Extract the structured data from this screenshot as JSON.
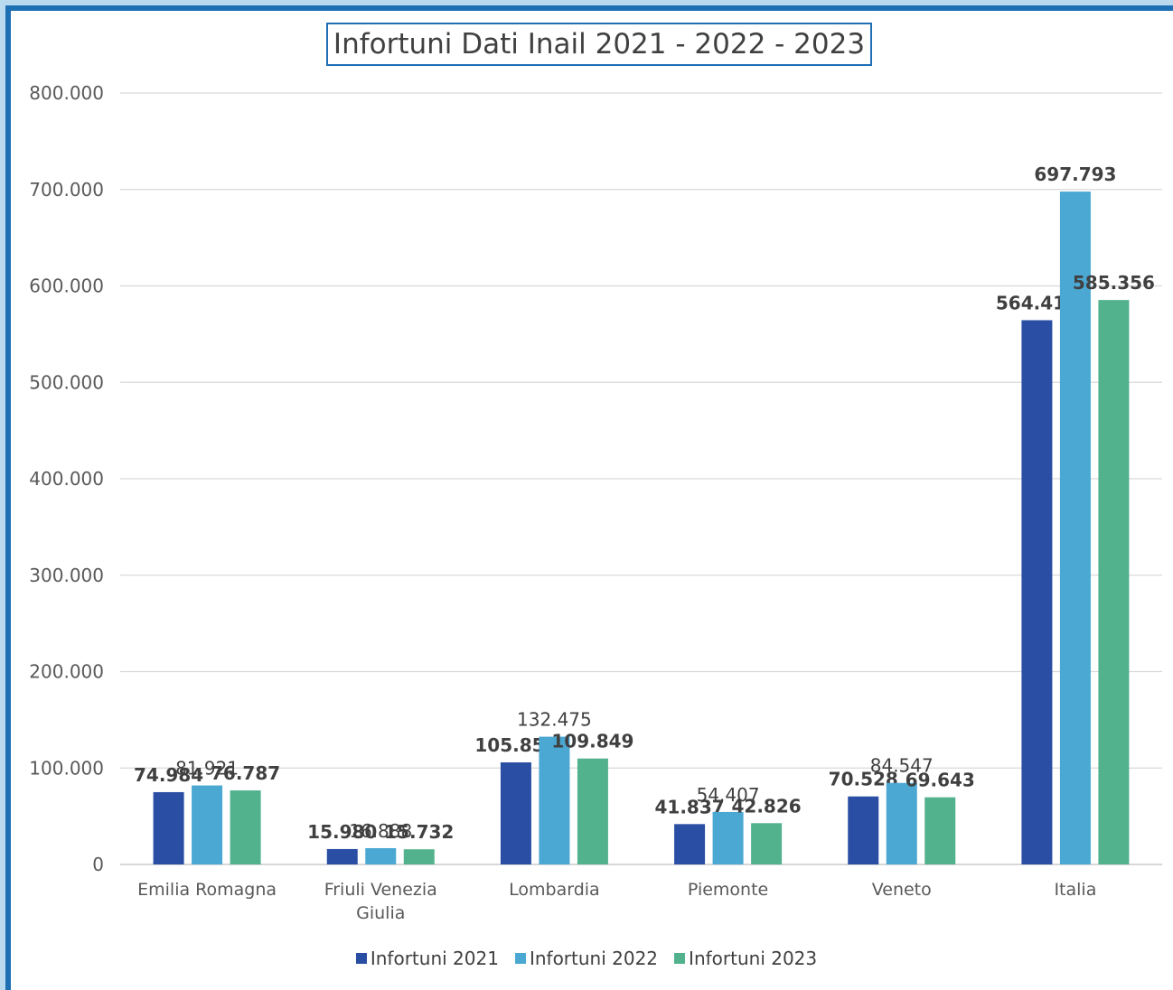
{
  "chart_data": {
    "type": "bar",
    "title": "Infortuni Dati Inail 2021 - 2022 - 2023",
    "categories": [
      "Emilia Romagna",
      "Friuli Venezia Giulia",
      "Lombardia",
      "Piemonte",
      "Veneto",
      "Italia"
    ],
    "category_lines": [
      [
        "Emilia Romagna"
      ],
      [
        "Friuli Venezia",
        "Giulia"
      ],
      [
        "Lombardia"
      ],
      [
        "Piemonte"
      ],
      [
        "Veneto"
      ],
      [
        "Italia"
      ]
    ],
    "series": [
      {
        "name": "Infortuni 2021",
        "color": "#2a4ea3",
        "values": [
          74984,
          15980,
          105851,
          41837,
          70528,
          564412
        ],
        "labels": [
          "74.984",
          "15.980",
          "105.851",
          "41.837",
          "70.528",
          "564.412"
        ],
        "bold_labels": true
      },
      {
        "name": "Infortuni 2022",
        "color": "#4aa8d2",
        "values": [
          81921,
          16888,
          132475,
          54407,
          84547,
          697793
        ],
        "labels": [
          "81.921",
          "16.888",
          "132.475",
          "54.407",
          "84.547",
          "697.793"
        ],
        "bold_labels": false,
        "bold_last": true
      },
      {
        "name": "Infortuni 2023",
        "color": "#52b28e",
        "values": [
          76787,
          15732,
          109849,
          42826,
          69643,
          585356
        ],
        "labels": [
          "76.787",
          "15.732",
          "109.849",
          "42.826",
          "69.643",
          "585.356"
        ],
        "bold_labels": true
      }
    ],
    "ylim": [
      0,
      800000
    ],
    "yticks": [
      0,
      100000,
      200000,
      300000,
      400000,
      500000,
      600000,
      700000,
      800000
    ],
    "ytick_labels": [
      "0",
      "100.000",
      "200.000",
      "300.000",
      "400.000",
      "500.000",
      "600.000",
      "700.000",
      "800.000"
    ],
    "grid": true,
    "legend": "bottom"
  }
}
